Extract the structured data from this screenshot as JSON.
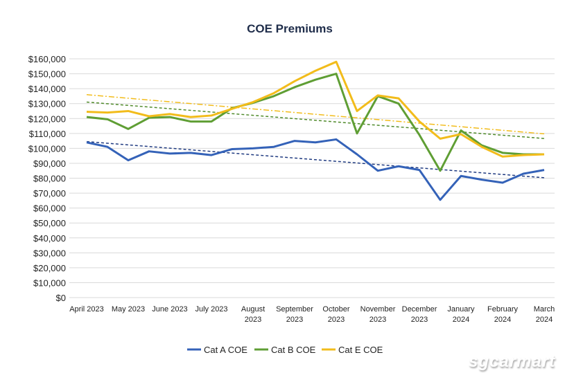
{
  "chart_data": {
    "type": "line",
    "title": "COE Premiums",
    "xlabel": "",
    "ylabel": "",
    "ylim": [
      0,
      160000
    ],
    "yticks": [
      "$0",
      "$10,000",
      "$20,000",
      "$30,000",
      "$40,000",
      "$50,000",
      "$60,000",
      "$70,000",
      "$80,000",
      "$90,000",
      "$100,000",
      "$110,000",
      "$120,000",
      "$130,000",
      "$140,000",
      "$150,000",
      "$160,000"
    ],
    "x_tick_labels": [
      [
        "April 2023"
      ],
      [
        "May 2023"
      ],
      [
        "June 2023"
      ],
      [
        "July 2023"
      ],
      [
        "August",
        "2023"
      ],
      [
        "September",
        "2023"
      ],
      [
        "October",
        "2023"
      ],
      [
        "November",
        "2023"
      ],
      [
        "December",
        "2023"
      ],
      [
        "January",
        "2024"
      ],
      [
        "February",
        "2024"
      ],
      [
        "March",
        "2024"
      ]
    ],
    "points_per_month": 2,
    "grid": true,
    "legend_position": "bottom",
    "series": [
      {
        "name": "Cat A COE",
        "color": "#3462b8",
        "trendline": "linear",
        "trend_style": "dashed",
        "trend_color": "#1f3a80",
        "values": [
          104000,
          101000,
          92000,
          98000,
          96500,
          97000,
          95500,
          99500,
          100000,
          101000,
          105000,
          104000,
          106000,
          96000,
          85000,
          88000,
          85500,
          65500,
          81500,
          79000,
          77000,
          83000,
          85500
        ]
      },
      {
        "name": "Cat B COE",
        "color": "#5f9e34",
        "trendline": "linear",
        "trend_style": "dashed",
        "trend_color": "#4f8a2a",
        "values": [
          121000,
          119500,
          113000,
          120500,
          121000,
          118000,
          118000,
          127000,
          130500,
          135000,
          141000,
          146000,
          150000,
          110000,
          135000,
          130000,
          109000,
          85000,
          112000,
          102000,
          97000,
          96000,
          96000
        ]
      },
      {
        "name": "Cat E COE",
        "color": "#f2bc1b",
        "trendline": "linear",
        "trend_style": "dash-dot",
        "trend_color": "#f2bc1b",
        "values": [
          124500,
          124000,
          125000,
          121500,
          123000,
          121000,
          122000,
          126500,
          131000,
          137000,
          145000,
          152000,
          158000,
          125000,
          135500,
          133500,
          118000,
          106500,
          109500,
          101000,
          94500,
          95500,
          96000
        ]
      }
    ]
  },
  "watermark": "sgcarmart"
}
